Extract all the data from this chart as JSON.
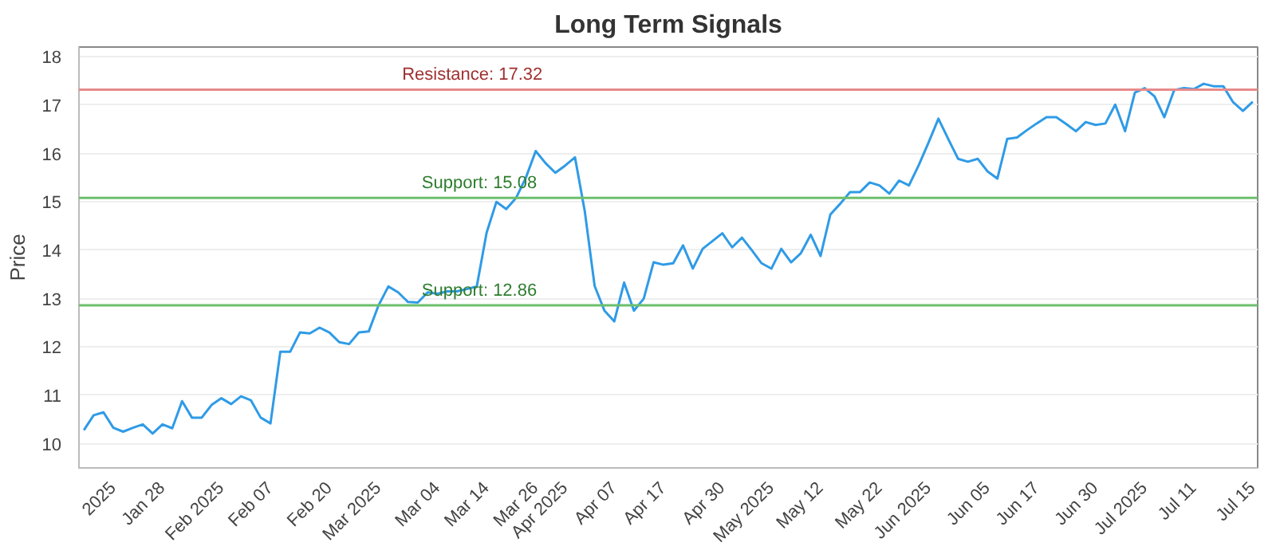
{
  "chart_data": {
    "type": "line",
    "title": "Long Term Signals",
    "ylabel": "Price",
    "categories": [
      null,
      null,
      null,
      "2025",
      null,
      null,
      null,
      null,
      "Jan 28",
      null,
      null,
      null,
      null,
      null,
      "Feb 2025",
      null,
      null,
      null,
      null,
      "Feb 07",
      null,
      null,
      null,
      null,
      null,
      "Feb 20",
      null,
      null,
      null,
      null,
      "Mar 2025",
      null,
      null,
      null,
      null,
      null,
      "Mar 04",
      null,
      null,
      null,
      null,
      "Mar 14",
      null,
      null,
      null,
      null,
      "Mar 26",
      null,
      null,
      "Apr 2025",
      null,
      null,
      null,
      null,
      "Apr 07",
      null,
      null,
      null,
      null,
      "Apr 17",
      null,
      null,
      null,
      null,
      null,
      "Apr 30",
      null,
      null,
      null,
      null,
      "May 2025",
      null,
      null,
      null,
      null,
      "May 12",
      null,
      null,
      null,
      null,
      null,
      "May 22",
      null,
      null,
      null,
      null,
      "Jun 2025",
      null,
      null,
      null,
      null,
      null,
      "Jun 05",
      null,
      null,
      null,
      null,
      "Jun 17",
      null,
      null,
      null,
      null,
      null,
      "Jun 30",
      null,
      null,
      null,
      null,
      "Jul 2025",
      null,
      null,
      null,
      null,
      "Jul 11",
      null,
      null,
      null,
      null,
      null,
      "Jul 15"
    ],
    "series": [
      {
        "color": "#2f9be6",
        "values": [
          10.28,
          10.59,
          10.65,
          10.33,
          10.25,
          10.33,
          10.4,
          10.21,
          10.4,
          10.32,
          10.88,
          10.54,
          10.54,
          10.8,
          10.94,
          10.82,
          10.98,
          10.9,
          10.54,
          10.42,
          11.9,
          11.9,
          12.3,
          12.28,
          12.4,
          12.3,
          12.1,
          12.06,
          12.3,
          12.32,
          12.86,
          13.25,
          13.13,
          12.93,
          12.92,
          13.13,
          13.1,
          13.15,
          13.15,
          13.2,
          13.25,
          14.36,
          15.0,
          14.85,
          15.08,
          15.5,
          16.05,
          15.8,
          15.6,
          15.75,
          15.92,
          14.8,
          13.26,
          12.75,
          12.53,
          13.33,
          12.75,
          13.0,
          13.75,
          13.7,
          13.73,
          14.1,
          13.62,
          14.03,
          14.19,
          14.35,
          14.06,
          14.26,
          14.0,
          13.73,
          13.62,
          14.03,
          13.75,
          13.94,
          14.32,
          13.88,
          14.74,
          14.96,
          15.2,
          15.2,
          15.4,
          15.34,
          15.17,
          15.44,
          15.34,
          15.76,
          16.23,
          16.72,
          16.3,
          15.89,
          15.83,
          15.89,
          15.63,
          15.48,
          16.3,
          16.33,
          16.48,
          16.62,
          16.75,
          16.75,
          16.61,
          16.46,
          16.65,
          16.59,
          16.62,
          17.01,
          16.46,
          17.26,
          17.35,
          17.18,
          16.75,
          17.31,
          17.35,
          17.33,
          17.44,
          17.39,
          17.39,
          17.06,
          16.88,
          17.07
        ]
      }
    ],
    "ylim": [
      9.5,
      18.2
    ],
    "yticks": [
      10,
      11,
      12,
      13,
      14,
      15,
      16,
      17,
      18
    ],
    "grid": "y",
    "line_style": "solid",
    "marker": "none",
    "ref_lines": [
      {
        "axis": "y",
        "value": 17.32,
        "label": "Resistance: 17.32",
        "color": "#e88a8a"
      },
      {
        "axis": "y",
        "value": 15.08,
        "label": "Support: 15.08",
        "color": "#6cbf6c"
      },
      {
        "axis": "y",
        "value": 12.86,
        "label": "Support: 12.86",
        "color": "#6cbf6c"
      }
    ]
  }
}
